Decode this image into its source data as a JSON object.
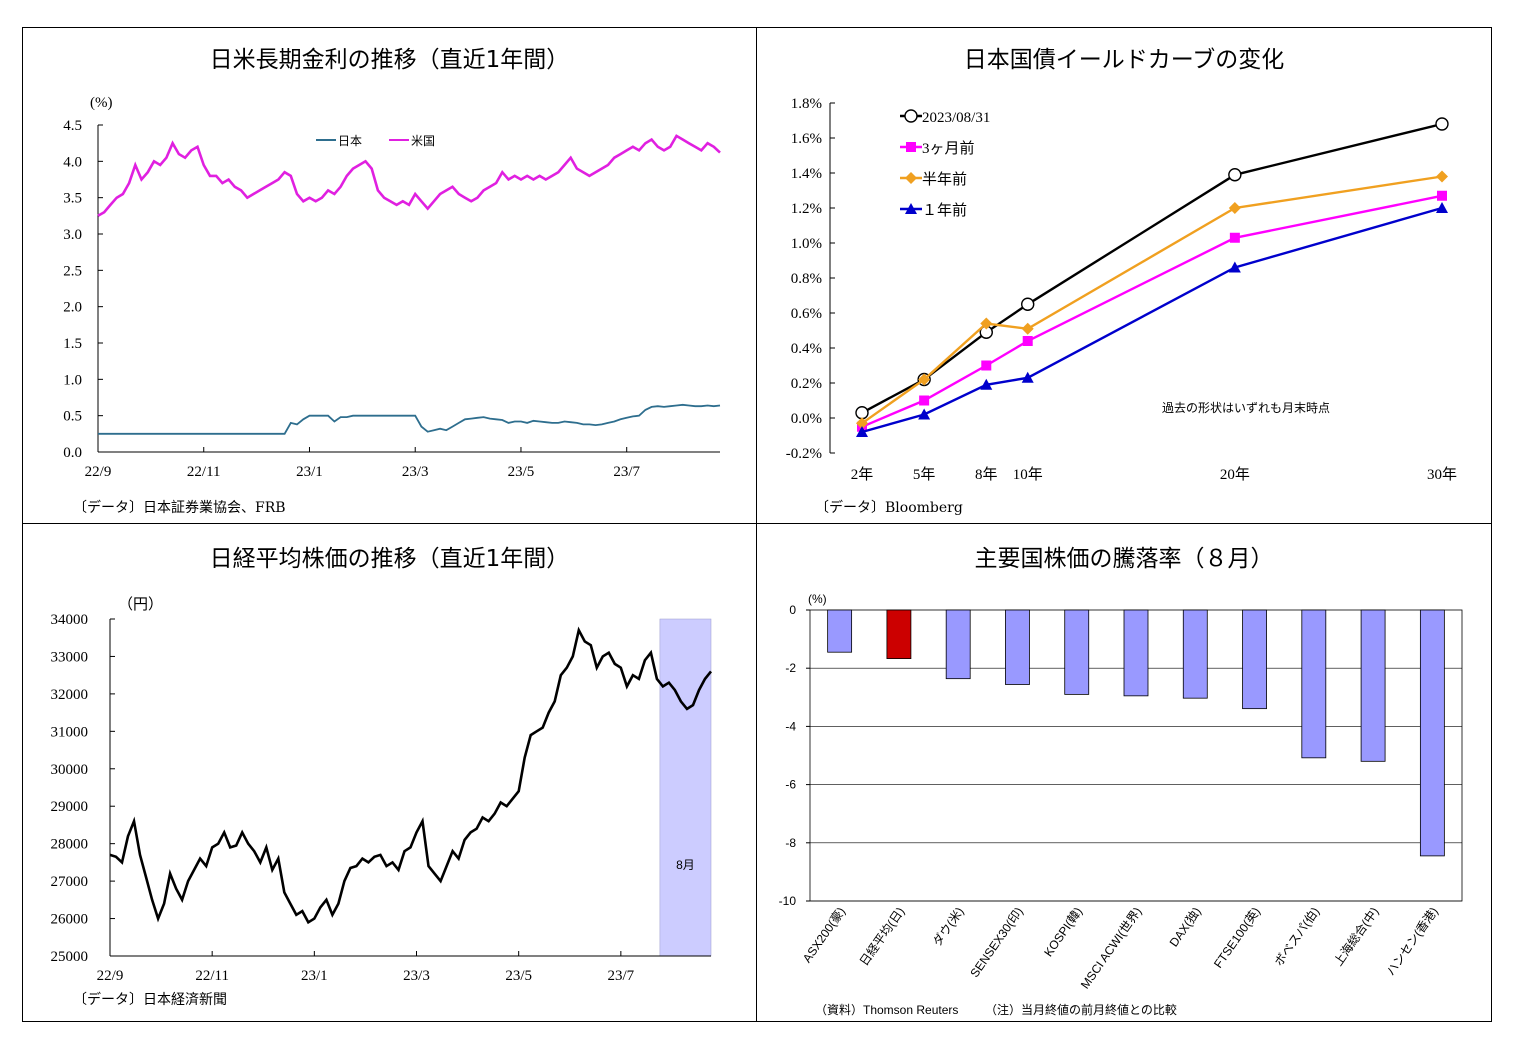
{
  "chart_data": [
    {
      "type": "line",
      "title": "日米長期金利の推移（直近1年間）",
      "ylabel": "(%)",
      "ylim": [
        0,
        4.5
      ],
      "y_ticks": [
        "0.0",
        "0.5",
        "1.0",
        "1.5",
        "2.0",
        "2.5",
        "3.0",
        "3.5",
        "4.0",
        "4.5"
      ],
      "x_ticks": [
        "22/9",
        "22/11",
        "23/1",
        "23/3",
        "23/5",
        "23/7"
      ],
      "x_index_range": [
        0,
        100
      ],
      "x_tick_index": [
        0,
        17,
        34,
        51,
        68,
        85
      ],
      "legend_position": "top-center",
      "source": "〔データ〕日本証券業協会、FRB",
      "series": [
        {
          "name": "日本",
          "color": "#2E6E8E",
          "values": [
            0.25,
            0.25,
            0.25,
            0.25,
            0.25,
            0.25,
            0.25,
            0.25,
            0.25,
            0.25,
            0.25,
            0.25,
            0.25,
            0.25,
            0.25,
            0.25,
            0.25,
            0.25,
            0.25,
            0.25,
            0.25,
            0.25,
            0.25,
            0.25,
            0.25,
            0.25,
            0.25,
            0.25,
            0.25,
            0.25,
            0.25,
            0.4,
            0.38,
            0.45,
            0.5,
            0.5,
            0.5,
            0.5,
            0.42,
            0.48,
            0.48,
            0.5,
            0.5,
            0.5,
            0.5,
            0.5,
            0.5,
            0.5,
            0.5,
            0.5,
            0.5,
            0.5,
            0.35,
            0.28,
            0.3,
            0.32,
            0.3,
            0.35,
            0.4,
            0.45,
            0.46,
            0.47,
            0.48,
            0.46,
            0.45,
            0.44,
            0.4,
            0.42,
            0.42,
            0.4,
            0.43,
            0.42,
            0.41,
            0.4,
            0.4,
            0.42,
            0.41,
            0.4,
            0.38,
            0.38,
            0.37,
            0.38,
            0.4,
            0.42,
            0.45,
            0.47,
            0.49,
            0.5,
            0.58,
            0.62,
            0.63,
            0.62,
            0.63,
            0.64,
            0.65,
            0.64,
            0.63,
            0.63,
            0.64,
            0.63,
            0.64
          ]
        },
        {
          "name": "米国",
          "color": "#E020E0",
          "values": [
            3.25,
            3.3,
            3.4,
            3.5,
            3.55,
            3.7,
            3.95,
            3.75,
            3.85,
            4.0,
            3.95,
            4.05,
            4.25,
            4.1,
            4.05,
            4.15,
            4.2,
            3.95,
            3.8,
            3.8,
            3.7,
            3.75,
            3.65,
            3.6,
            3.5,
            3.55,
            3.6,
            3.65,
            3.7,
            3.75,
            3.85,
            3.8,
            3.55,
            3.45,
            3.5,
            3.45,
            3.5,
            3.6,
            3.55,
            3.65,
            3.8,
            3.9,
            3.95,
            4.0,
            3.9,
            3.6,
            3.5,
            3.45,
            3.4,
            3.45,
            3.4,
            3.55,
            3.45,
            3.35,
            3.45,
            3.55,
            3.6,
            3.65,
            3.55,
            3.5,
            3.45,
            3.5,
            3.6,
            3.65,
            3.7,
            3.85,
            3.75,
            3.8,
            3.75,
            3.8,
            3.75,
            3.8,
            3.75,
            3.8,
            3.85,
            3.95,
            4.05,
            3.9,
            3.85,
            3.8,
            3.85,
            3.9,
            3.95,
            4.05,
            4.1,
            4.15,
            4.2,
            4.15,
            4.25,
            4.3,
            4.2,
            4.15,
            4.2,
            4.35,
            4.3,
            4.25,
            4.2,
            4.15,
            4.25,
            4.2,
            4.12
          ]
        }
      ]
    },
    {
      "type": "line",
      "title": "日本国債イールドカーブの変化",
      "ylim": [
        -0.2,
        1.8
      ],
      "y_ticks": [
        "-0.2%",
        "0.0%",
        "0.2%",
        "0.4%",
        "0.6%",
        "0.8%",
        "1.0%",
        "1.2%",
        "1.4%",
        "1.6%",
        "1.8%"
      ],
      "categories": [
        "2年",
        "5年",
        "8年",
        "10年",
        "20年",
        "30年"
      ],
      "x": [
        2,
        5,
        8,
        10,
        20,
        30
      ],
      "annotation": "過去の形状はいずれも月末時点",
      "legend_position": "top-left",
      "source": "〔データ〕Bloomberg",
      "series": [
        {
          "name": "2023/08/31",
          "color": "#000000",
          "marker": "circle-open",
          "values": [
            0.03,
            0.22,
            0.49,
            0.65,
            1.39,
            1.68
          ]
        },
        {
          "name": "3ヶ月前",
          "color": "#FF00FF",
          "marker": "square",
          "values": [
            -0.05,
            0.1,
            0.3,
            0.44,
            1.03,
            1.27
          ]
        },
        {
          "name": "半年前",
          "color": "#F0A020",
          "marker": "diamond",
          "values": [
            -0.03,
            0.22,
            0.54,
            0.51,
            1.2,
            1.38
          ]
        },
        {
          "name": "１年前",
          "color": "#0000CC",
          "marker": "triangle",
          "values": [
            -0.08,
            0.02,
            0.19,
            0.23,
            0.86,
            1.2
          ]
        }
      ]
    },
    {
      "type": "line",
      "title": "日経平均株価の推移（直近1年間）",
      "ylabel": "（円）",
      "ylim": [
        25000,
        34000
      ],
      "y_ticks": [
        "25000",
        "26000",
        "27000",
        "28000",
        "29000",
        "30000",
        "31000",
        "32000",
        "33000",
        "34000"
      ],
      "x_ticks": [
        "22/9",
        "22/11",
        "23/1",
        "23/3",
        "23/5",
        "23/7"
      ],
      "x_index_range": [
        0,
        100
      ],
      "x_tick_index": [
        0,
        17,
        34,
        51,
        68,
        85
      ],
      "highlight": {
        "label": "8月",
        "from_index": 91.5,
        "to_index": 100,
        "color": "#CCCCFF"
      },
      "source": "〔データ〕日本経済新聞",
      "series": [
        {
          "name": "日経平均",
          "color": "#000000",
          "values": [
            27700,
            27650,
            27500,
            28200,
            28600,
            27700,
            27100,
            26500,
            26000,
            26400,
            27200,
            26800,
            26500,
            27000,
            27300,
            27600,
            27400,
            27900,
            28000,
            28300,
            27900,
            27950,
            28300,
            28000,
            27800,
            27500,
            27900,
            27300,
            27600,
            26700,
            26400,
            26100,
            26200,
            25900,
            26000,
            26300,
            26500,
            26100,
            26400,
            27000,
            27350,
            27400,
            27600,
            27500,
            27650,
            27700,
            27400,
            27500,
            27300,
            27800,
            27900,
            28300,
            28600,
            27400,
            27200,
            27000,
            27400,
            27800,
            27600,
            28100,
            28300,
            28400,
            28700,
            28600,
            28800,
            29100,
            29000,
            29200,
            29400,
            30300,
            30900,
            31000,
            31100,
            31500,
            31800,
            32500,
            32700,
            33000,
            33700,
            33400,
            33300,
            32700,
            33000,
            33100,
            32800,
            32700,
            32200,
            32500,
            32400,
            32900,
            33100,
            32400,
            32200,
            32300,
            32100,
            31800,
            31600,
            31700,
            32100,
            32400,
            32600
          ]
        }
      ]
    },
    {
      "type": "bar",
      "title": "主要国株価の騰落率（８月）",
      "ylabel": "(%)",
      "ylim": [
        -10,
        0
      ],
      "y_ticks": [
        "0",
        "-2",
        "-4",
        "-6",
        "-8",
        "-10"
      ],
      "categories": [
        "ASX200(豪)",
        "日経平均(日)",
        "ダウ(米)",
        "SENSEX30(印)",
        "KOSPI(韓)",
        "MSCI ACWI(世界)",
        "DAX(独)",
        "FTSE100(英)",
        "ボベスパ(伯)",
        "上海総合(中)",
        "ハンセン(香港)"
      ],
      "values": [
        -1.45,
        -1.67,
        -2.36,
        -2.56,
        -2.9,
        -2.95,
        -3.03,
        -3.39,
        -5.08,
        -5.2,
        -8.45
      ],
      "colors": [
        "#9999FF",
        "#CC0000",
        "#9999FF",
        "#9999FF",
        "#9999FF",
        "#9999FF",
        "#9999FF",
        "#9999FF",
        "#9999FF",
        "#9999FF",
        "#9999FF"
      ],
      "source": "（資料）Thomson Reuters",
      "note": "（注）当月終値の前月終値との比較"
    }
  ]
}
